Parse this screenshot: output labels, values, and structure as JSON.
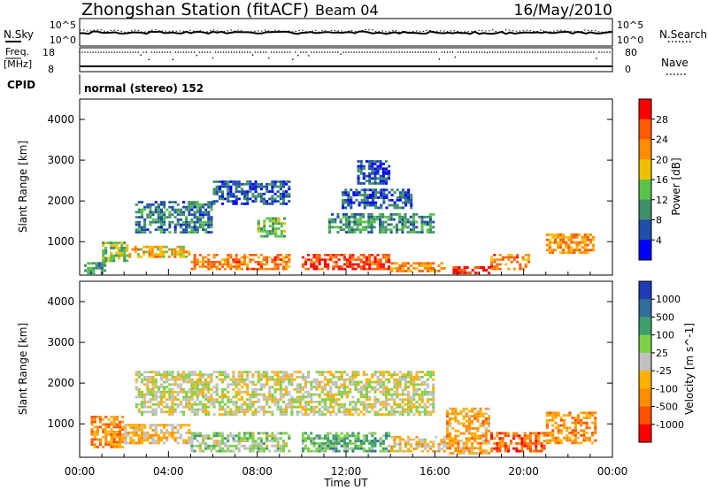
{
  "header": {
    "station": "Zhongshan Station (fitACF)",
    "beam": "Beam 04",
    "date": "16/May/2010"
  },
  "sky_panel": {
    "left_label": "N.Sky",
    "right_label": "N.Search",
    "left_ticks": [
      "10^5",
      "10^0"
    ],
    "right_ticks": [
      "10^5",
      "10^0"
    ]
  },
  "freq_panel": {
    "left_label_1": "Freq.",
    "left_label_2": "[MHz]",
    "right_label": "Nave",
    "left_ticks": [
      "18",
      "8"
    ],
    "right_ticks": [
      "80",
      "0"
    ]
  },
  "cpid": {
    "label": "CPID",
    "mode": "normal (stereo) 152"
  },
  "x_axis": {
    "label": "Time UT",
    "ticks": [
      "00:00",
      "04:00",
      "08:00",
      "12:00",
      "16:00",
      "20:00",
      "00:00"
    ]
  },
  "colors": {
    "power": [
      "#0000ff",
      "#1e4ea8",
      "#3f8f6a",
      "#58c24a",
      "#f0c000",
      "#ff8c00",
      "#ff5a00",
      "#ff0000"
    ],
    "velocity": [
      "#1e3cb4",
      "#2f6f9c",
      "#3f9f6a",
      "#7ed048",
      "#c0c0c0",
      "#ffb000",
      "#ff8c00",
      "#ff5000",
      "#ff0000"
    ]
  },
  "chart_data": [
    {
      "type": "heatmap",
      "quantity": "Power",
      "ylabel": "Slant Range [km]",
      "xlabel": "",
      "ylim": [
        180,
        4500
      ],
      "xlim": [
        0,
        24
      ],
      "y_ticks": [
        1000,
        2000,
        3000,
        4000
      ],
      "colorbar": {
        "label": "Power [dB]",
        "ticks": [
          "4",
          "8",
          "12",
          "16",
          "20",
          "24",
          "28"
        ],
        "range": [
          0,
          30
        ]
      },
      "regions": [
        {
          "t": [
            0.2,
            1.2
          ],
          "r": [
            200,
            500
          ],
          "v": 10
        },
        {
          "t": [
            1.0,
            2.2
          ],
          "r": [
            500,
            1000
          ],
          "v": 14
        },
        {
          "t": [
            2.2,
            5.0
          ],
          "r": [
            600,
            900
          ],
          "v": 18
        },
        {
          "t": [
            5.0,
            9.5
          ],
          "r": [
            300,
            700
          ],
          "v": 22
        },
        {
          "t": [
            10.0,
            14.0
          ],
          "r": [
            300,
            700
          ],
          "v": 26
        },
        {
          "t": [
            14.0,
            16.5
          ],
          "r": [
            250,
            500
          ],
          "v": 20
        },
        {
          "t": [
            16.8,
            18.5
          ],
          "r": [
            200,
            400
          ],
          "v": 28
        },
        {
          "t": [
            18.5,
            20.3
          ],
          "r": [
            300,
            700
          ],
          "v": 22
        },
        {
          "t": [
            21.0,
            23.2
          ],
          "r": [
            700,
            1200
          ],
          "v": 20
        },
        {
          "t": [
            8.0,
            9.3
          ],
          "r": [
            1100,
            1600
          ],
          "v": 12
        },
        {
          "t": [
            2.5,
            6.0
          ],
          "r": [
            1200,
            2000
          ],
          "v": 8
        },
        {
          "t": [
            11.2,
            16.0
          ],
          "r": [
            1200,
            1700
          ],
          "v": 10
        },
        {
          "t": [
            11.8,
            15.0
          ],
          "r": [
            1800,
            2300
          ],
          "v": 6
        },
        {
          "t": [
            12.5,
            14.0
          ],
          "r": [
            2400,
            3000
          ],
          "v": 5
        },
        {
          "t": [
            6.0,
            9.5
          ],
          "r": [
            1900,
            2500
          ],
          "v": 6
        }
      ]
    },
    {
      "type": "heatmap",
      "quantity": "Velocity",
      "ylabel": "Slant Range [km]",
      "xlabel": "Time UT",
      "ylim": [
        180,
        4500
      ],
      "xlim": [
        0,
        24
      ],
      "y_ticks": [
        1000,
        2000,
        3000,
        4000
      ],
      "colorbar": {
        "label": "Velocity [m s^-1]",
        "ticks": [
          "1000",
          "500",
          "100",
          "25",
          "-25",
          "-100",
          "-500",
          "-1000"
        ],
        "range": [
          -1000,
          1000
        ]
      },
      "regions": [
        {
          "t": [
            0.5,
            2.0
          ],
          "r": [
            400,
            1200
          ],
          "v": -400
        },
        {
          "t": [
            2.0,
            5.0
          ],
          "r": [
            500,
            1000
          ],
          "v": -200
        },
        {
          "t": [
            5.0,
            9.5
          ],
          "r": [
            300,
            800
          ],
          "v": 150
        },
        {
          "t": [
            10.0,
            14.0
          ],
          "r": [
            300,
            800
          ],
          "v": 300
        },
        {
          "t": [
            14.0,
            16.5
          ],
          "r": [
            300,
            700
          ],
          "v": -150
        },
        {
          "t": [
            16.5,
            18.5
          ],
          "r": [
            250,
            1400
          ],
          "v": -300
        },
        {
          "t": [
            18.5,
            21.0
          ],
          "r": [
            300,
            800
          ],
          "v": -600
        },
        {
          "t": [
            21.0,
            23.3
          ],
          "r": [
            500,
            1300
          ],
          "v": -400
        },
        {
          "t": [
            2.5,
            16.0
          ],
          "r": [
            1200,
            2300
          ],
          "v": 0
        }
      ]
    }
  ]
}
